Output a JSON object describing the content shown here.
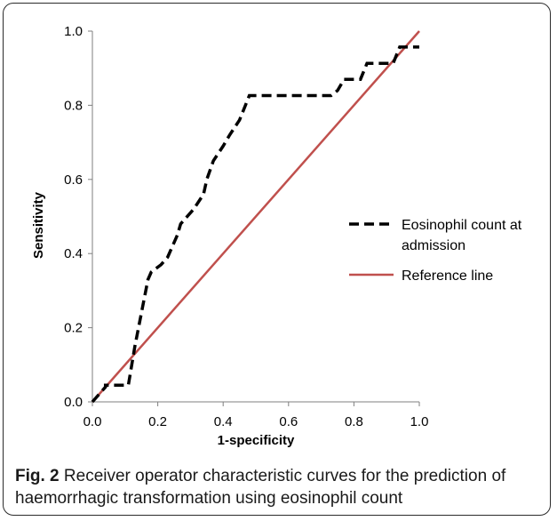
{
  "figure": {
    "caption_label": "Fig. 2",
    "caption_text": " Receiver operator characteristic curves for the prediction of haemorrhagic transformation using eosinophil count"
  },
  "chart_data": {
    "type": "line",
    "title": "",
    "xlabel": "1-specificity",
    "ylabel": "Sensitivity",
    "xlim": [
      0,
      1
    ],
    "ylim": [
      0,
      1
    ],
    "xticks": [
      "0.0",
      "0.2",
      "0.4",
      "0.6",
      "0.8",
      "1.0"
    ],
    "yticks": [
      "0.0",
      "0.2",
      "0.4",
      "0.6",
      "0.8",
      "1.0"
    ],
    "grid": false,
    "legend_position": "right",
    "series": [
      {
        "name": "Eosinophil count at admission",
        "color": "#000000",
        "style": "dashed",
        "x": [
          0.0,
          0.02,
          0.04,
          0.04,
          0.06,
          0.09,
          0.11,
          0.13,
          0.17,
          0.18,
          0.21,
          0.23,
          0.26,
          0.27,
          0.29,
          0.31,
          0.34,
          0.35,
          0.37,
          0.4,
          0.42,
          0.45,
          0.48,
          0.5,
          0.55,
          0.6,
          0.65,
          0.7,
          0.73,
          0.75,
          0.77,
          0.8,
          0.82,
          0.84,
          0.86,
          0.88,
          0.9,
          0.92,
          0.94,
          0.96,
          0.98,
          1.0
        ],
        "y": [
          0.0,
          0.02,
          0.04,
          0.045,
          0.045,
          0.045,
          0.045,
          0.15,
          0.33,
          0.35,
          0.37,
          0.39,
          0.45,
          0.48,
          0.5,
          0.52,
          0.56,
          0.6,
          0.65,
          0.69,
          0.72,
          0.76,
          0.826,
          0.826,
          0.826,
          0.826,
          0.826,
          0.826,
          0.826,
          0.84,
          0.87,
          0.87,
          0.87,
          0.913,
          0.913,
          0.913,
          0.913,
          0.913,
          0.957,
          0.957,
          0.957,
          0.957
        ]
      },
      {
        "name": "Reference line",
        "color": "#c0504d",
        "style": "solid",
        "x": [
          0.0,
          1.0
        ],
        "y": [
          0.0,
          1.0
        ]
      }
    ],
    "legend": [
      {
        "lines": [
          "Eosinophil count at",
          "admission"
        ],
        "icon": "dashed-black-line-icon"
      },
      {
        "lines": [
          "Reference line"
        ],
        "icon": "solid-red-line-icon"
      }
    ]
  }
}
